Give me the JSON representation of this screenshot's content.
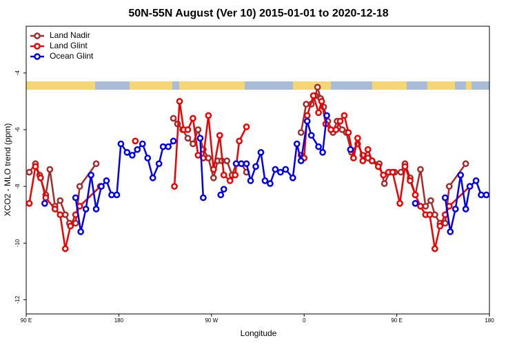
{
  "chart_data": {
    "type": "line",
    "title": "50N-55N August (Ver 10)   2015-01-01 to 2020-12-18",
    "x_label": "Longitude",
    "y_label": "XCO2 - MLO trend (ppm)",
    "xlim": [
      90,
      540
    ],
    "ylim": [
      -12.5,
      -2.35
    ],
    "xticks": [
      {
        "value": 90,
        "label": "90 E"
      },
      180,
      {
        "value": 270,
        "label": "90 W"
      },
      {
        "value": 360,
        "label": "0"
      },
      {
        "value": 450,
        "label": "90 E"
      },
      {
        "value": 540,
        "label": "180"
      }
    ],
    "yticks": [
      -12,
      -10,
      -8,
      -6,
      -4
    ],
    "legend": "top-left",
    "series": [
      {
        "name": "Land Nadir",
        "color": "#a52a2a",
        "x": [
          93,
          99,
          103,
          109,
          113,
          118,
          123,
          128,
          132,
          138,
          142,
          158,
          null,
          233,
          237,
          242,
          247,
          252,
          257,
          262,
          267,
          272,
          276,
          280,
          285,
          290,
          294,
          299,
          304,
          null,
          357,
          362,
          367,
          371,
          373,
          376,
          379,
          383,
          388,
          392,
          397,
          401,
          406,
          412,
          417,
          422,
          426,
          433,
          438,
          443,
          448,
          454,
          458,
          463,
          468,
          473,
          478,
          483,
          487,
          492,
          497,
          501,
          517
        ],
        "values": [
          -7.5,
          -7.2,
          -7.6,
          -8.3,
          -7.4,
          -8.7,
          -8.5,
          -9.0,
          -9.3,
          -9.3,
          -8.0,
          -7.2,
          null,
          -5.6,
          -5.8,
          -6.0,
          -6.3,
          -6.5,
          -6.0,
          -6.7,
          -7.0,
          -7.7,
          -7.1,
          -7.1,
          -7.1,
          -7.6,
          -7.2,
          -7.2,
          -7.5,
          null,
          -6.1,
          -5.1,
          -5.1,
          -4.8,
          -4.5,
          -4.9,
          -5.2,
          -5.7,
          -6.1,
          -5.7,
          -6.0,
          -6.1,
          -6.8,
          -6.5,
          -6.9,
          -7.0,
          -7.1,
          -7.2,
          -7.9,
          -7.5,
          -7.5,
          -7.5,
          -7.2,
          -7.7,
          -8.3,
          -7.4,
          -8.7,
          -8.5,
          -9.0,
          -9.3,
          -9.3,
          -8.0,
          -7.2
        ]
      },
      {
        "name": "Land Glint",
        "color": "#ee0000",
        "x": [
          93,
          99,
          104,
          109,
          118,
          123,
          128,
          133,
          138,
          142,
          162,
          null,
          196,
          null,
          234,
          239,
          243,
          247,
          252,
          257,
          262,
          267,
          272,
          278,
          282,
          288,
          293,
          297,
          304,
          null,
          357,
          360,
          363,
          369,
          374,
          377,
          381,
          386,
          391,
          395,
          399,
          403,
          408,
          412,
          417,
          422,
          426,
          432,
          437,
          442,
          446,
          453,
          458,
          463,
          468,
          473,
          478,
          482,
          487,
          492,
          497,
          501,
          521
        ],
        "values": [
          -8.6,
          -7.3,
          -7.7,
          -8.4,
          -8.8,
          -9.0,
          -10.2,
          -9.4,
          -9.0,
          -8.7,
          -8.0,
          null,
          -6.4,
          null,
          -8.0,
          -5.0,
          -6.0,
          -6.0,
          -5.6,
          -6.9,
          -7.0,
          -5.5,
          -7.4,
          -6.2,
          -7.6,
          -7.8,
          -7.6,
          -6.4,
          -5.9,
          null,
          -6.9,
          -7.0,
          -5.5,
          -4.8,
          -5.4,
          -5.0,
          -5.8,
          -6.0,
          -6.0,
          -5.7,
          -5.5,
          -6.1,
          -7.0,
          -6.3,
          -7.1,
          -6.7,
          -7.1,
          -7.3,
          -7.6,
          -7.5,
          -7.5,
          -8.6,
          -7.3,
          -7.8,
          -8.3,
          -8.7,
          -9.0,
          -9.0,
          -10.2,
          -9.4,
          -9.0,
          -8.7,
          -8.0
        ]
      },
      {
        "name": "Ocean Glint",
        "color": "#0000ee",
        "x": [
          108,
          null,
          138,
          143,
          148,
          153,
          158,
          163,
          168,
          173,
          178,
          182,
          188,
          193,
          198,
          203,
          208,
          213,
          219,
          223,
          228,
          233,
          null,
          259,
          262,
          null,
          279,
          282,
          null,
          294,
          299,
          304,
          308,
          313,
          318,
          322,
          327,
          332,
          337,
          342,
          349,
          353,
          357,
          363,
          367,
          374,
          378,
          382,
          null,
          405,
          null,
          468,
          null,
          497,
          502,
          507,
          512,
          517,
          521,
          527,
          532,
          537
        ],
        "values": [
          -8.6,
          null,
          -8.4,
          -9.6,
          -8.8,
          -7.6,
          -8.8,
          -8.0,
          -7.8,
          -8.3,
          -8.3,
          -6.5,
          -6.8,
          -6.9,
          -6.7,
          -6.5,
          -7.0,
          -7.7,
          -7.2,
          -6.6,
          -6.6,
          -6.4,
          null,
          -6.3,
          -8.4,
          null,
          -8.3,
          -8.1,
          null,
          -7.2,
          -7.2,
          -7.2,
          -7.8,
          -7.3,
          -6.8,
          -7.8,
          -7.9,
          -7.4,
          -7.5,
          -7.4,
          -7.7,
          -6.5,
          -7.1,
          -5.7,
          -6.2,
          -6.6,
          -6.8,
          -5.5,
          null,
          -6.7,
          null,
          -8.6,
          null,
          -8.4,
          -9.6,
          -8.8,
          -7.6,
          -8.8,
          -8.0,
          -7.8,
          -8.3,
          -8.3
        ]
      }
    ]
  }
}
